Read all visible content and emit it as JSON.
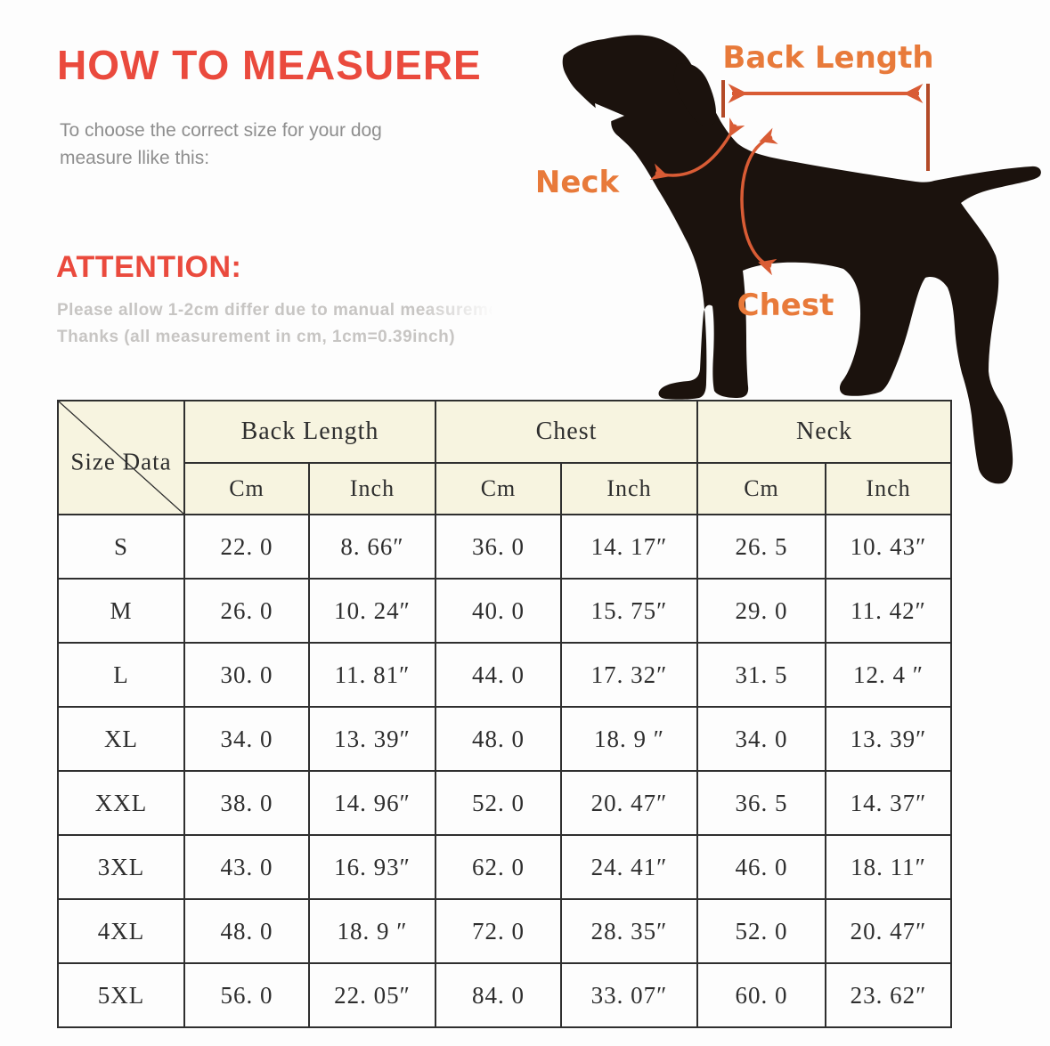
{
  "header": {
    "title": "HOW TO MEASUERE",
    "subtitle_line1": "To choose the correct size for your dog",
    "subtitle_line2": "measure llike this:"
  },
  "attention": {
    "title": "ATTENTION:",
    "line1": "Please allow 1-2cm differ due to manual measureme",
    "line2": "Thanks (all measurement in cm, 1cm=0.39inch)"
  },
  "figure": {
    "back_length_label": "Back Length",
    "neck_label": "Neck",
    "chest_label": "Chest"
  },
  "colors": {
    "accent_red": "#ea4a3d",
    "annotation_orange": "#e87a3a",
    "arrow_red": "#d95c35",
    "bar_red": "#b34a28",
    "silhouette_black": "#1b120d",
    "table_header_bg": "#f7f4e0",
    "table_border": "#2f2f2f",
    "divider_maroon": "#8a4034"
  },
  "chart_data": {
    "type": "table",
    "corner_label": "Size Data",
    "column_groups": [
      "Back Length",
      "Chest",
      "Neck"
    ],
    "unit_columns": [
      "Cm",
      "Inch"
    ],
    "rows": [
      [
        "S",
        "22. 0",
        "8. 66″",
        "36. 0",
        "14. 17″",
        "26. 5",
        "10. 43″"
      ],
      [
        "M",
        "26. 0",
        "10. 24″",
        "40. 0",
        "15. 75″",
        "29. 0",
        "11. 42″"
      ],
      [
        "L",
        "30. 0",
        "11. 81″",
        "44. 0",
        "17. 32″",
        "31. 5",
        "12. 4 ″"
      ],
      [
        "XL",
        "34. 0",
        "13. 39″",
        "48. 0",
        "18. 9 ″",
        "34. 0",
        "13. 39″"
      ],
      [
        "XXL",
        "38. 0",
        "14. 96″",
        "52. 0",
        "20. 47″",
        "36. 5",
        "14. 37″"
      ],
      [
        "3XL",
        "43. 0",
        "16. 93″",
        "62. 0",
        "24. 41″",
        "46. 0",
        "18. 11″"
      ],
      [
        "4XL",
        "48. 0",
        "18. 9 ″",
        "72. 0",
        "28. 35″",
        "52. 0",
        "20. 47″"
      ],
      [
        "5XL",
        "56. 0",
        "22. 05″",
        "84. 0",
        "33. 07″",
        "60. 0",
        "23. 62″"
      ]
    ]
  }
}
